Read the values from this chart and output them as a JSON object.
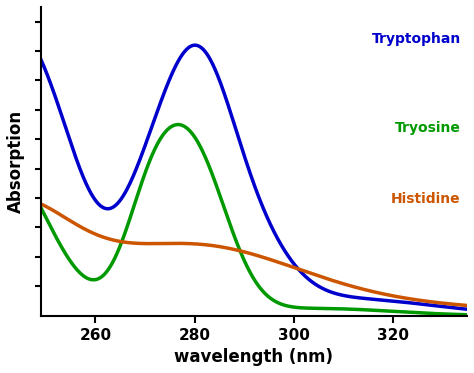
{
  "title": "",
  "xlabel": "wavelength (nm)",
  "ylabel": "Absorption",
  "xlim": [
    249,
    335
  ],
  "ylim": [
    0,
    1.05
  ],
  "colors": {
    "tryptophan": "#0000cc",
    "tyrosine": "#009900",
    "histidine": "#cc5500"
  },
  "labels": {
    "tryptophan": "Tryptophan",
    "tyrosine": "Tryosine",
    "histidine": "Histidine"
  },
  "background_color": "#ffffff",
  "linewidth": 2.5,
  "xticks": [
    260,
    280,
    300,
    320
  ],
  "ytick_positions": [
    0.1,
    0.2,
    0.3,
    0.4,
    0.5,
    0.6,
    0.7,
    0.8,
    0.9,
    1.0
  ]
}
